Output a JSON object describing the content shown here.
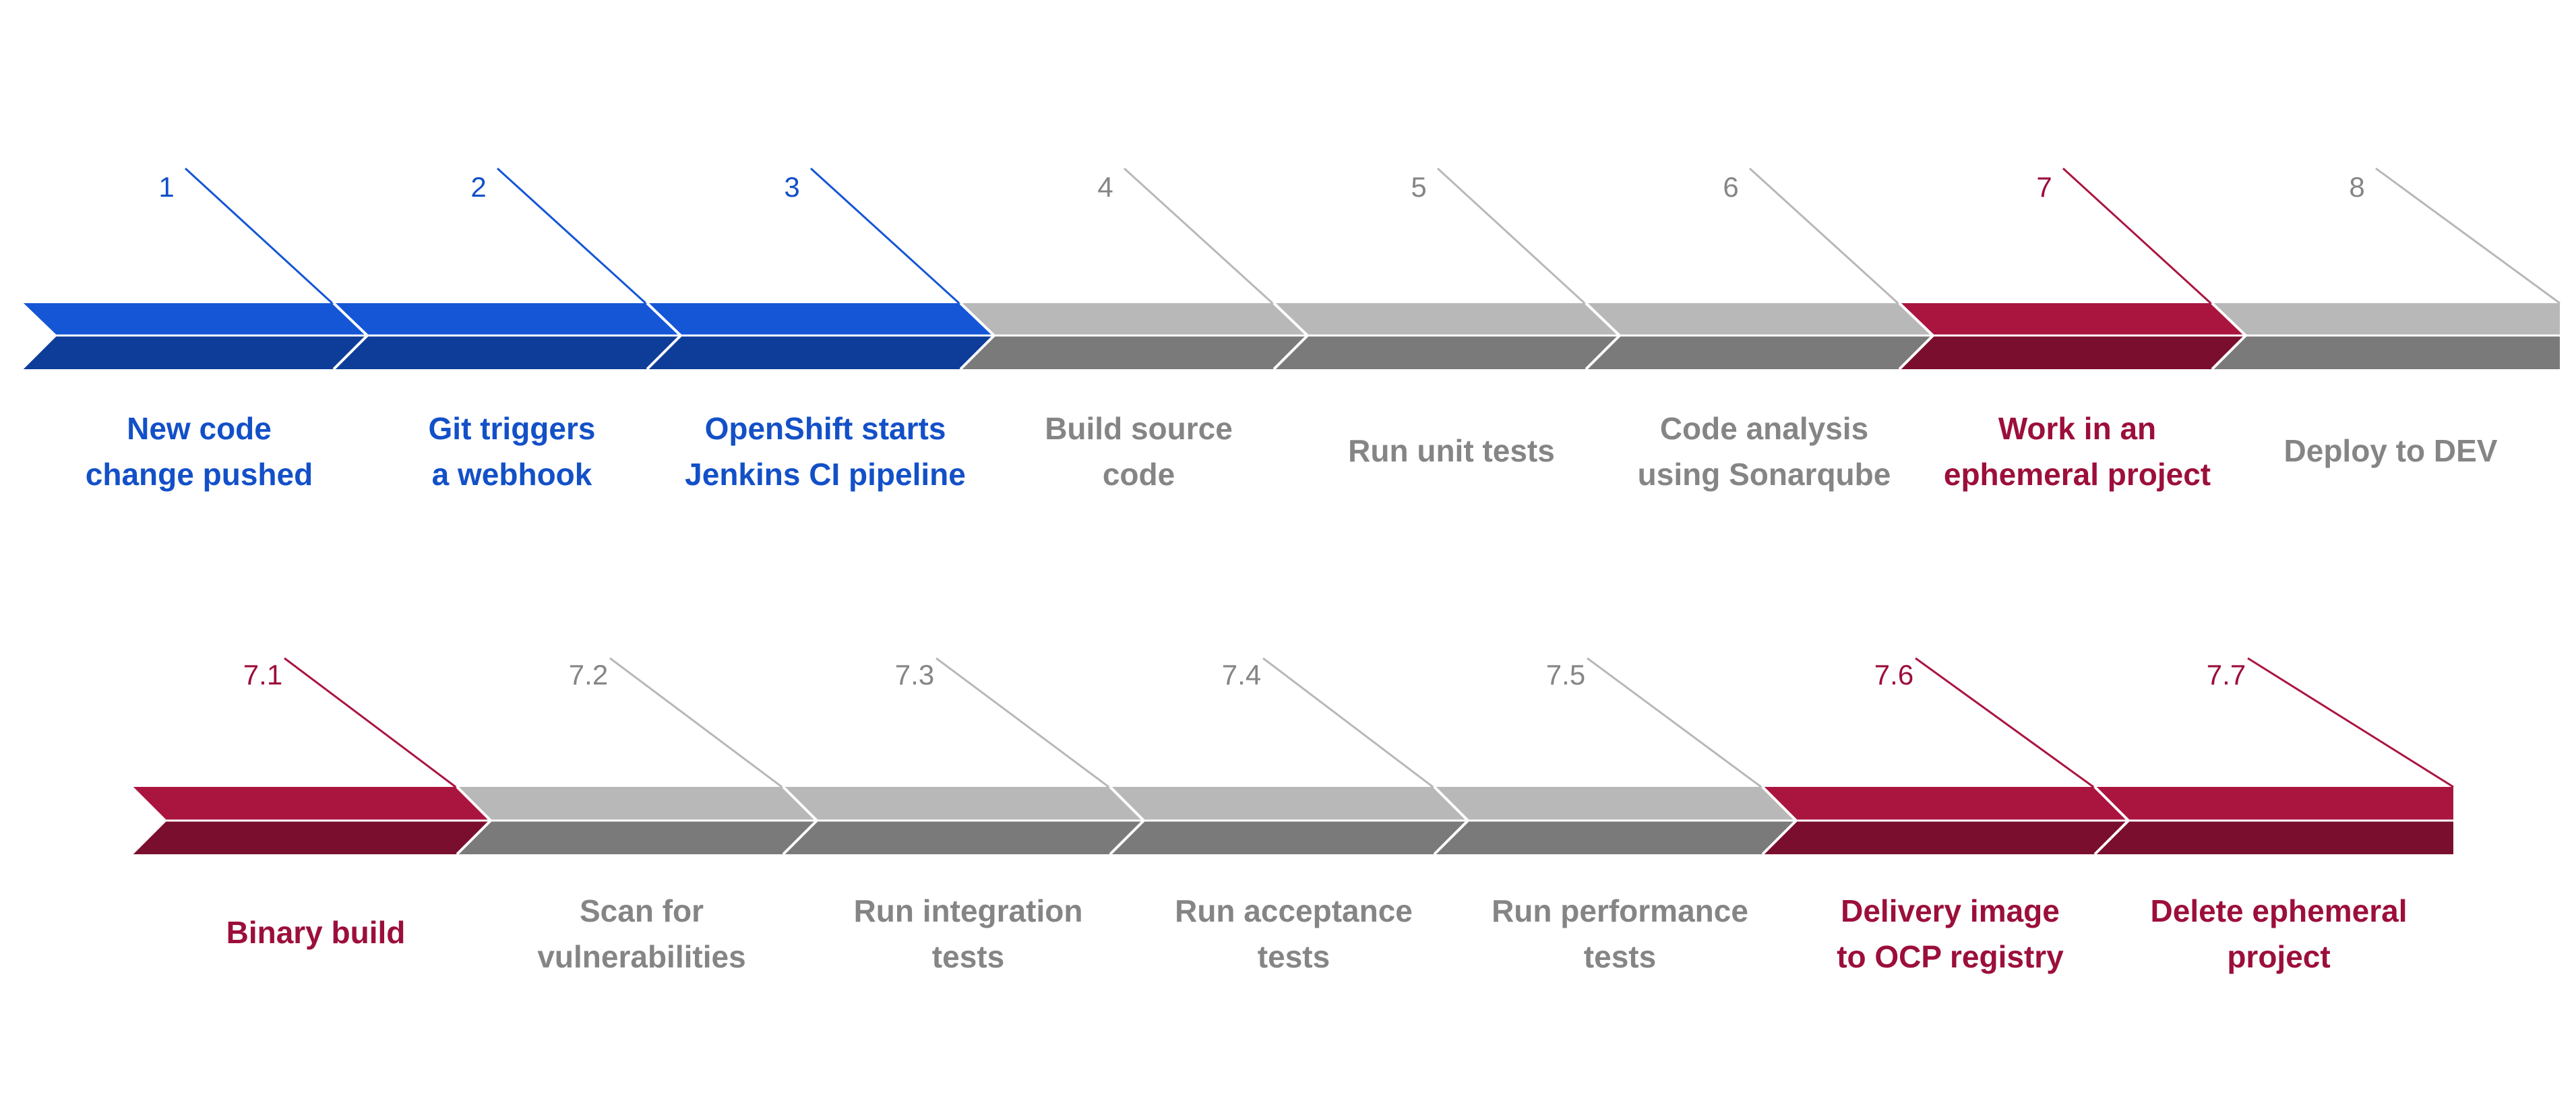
{
  "colors": {
    "blue_top": "#1456D6",
    "blue_bottom": "#0E3C99",
    "gray_top": "#B8B8B8",
    "gray_bottom": "#7A7A7A",
    "red_top": "#AA1540",
    "red_bottom": "#7A0E2E",
    "blue_text": "#1350C8",
    "gray_text": "#858585",
    "red_text": "#9C0F3A"
  },
  "rows": [
    {
      "id": "main",
      "steps": [
        {
          "number": "1",
          "label": [
            "New code",
            "change pushed"
          ],
          "color": "blue"
        },
        {
          "number": "2",
          "label": [
            "Git triggers",
            "a webhook"
          ],
          "color": "blue"
        },
        {
          "number": "3",
          "label": [
            "OpenShift starts",
            "Jenkins CI pipeline"
          ],
          "color": "blue"
        },
        {
          "number": "4",
          "label": [
            "Build source",
            "code"
          ],
          "color": "gray"
        },
        {
          "number": "5",
          "label": [
            "Run unit tests"
          ],
          "color": "gray"
        },
        {
          "number": "6",
          "label": [
            "Code analysis",
            "using Sonarqube"
          ],
          "color": "gray"
        },
        {
          "number": "7",
          "label": [
            "Work in an",
            "ephemeral project"
          ],
          "color": "red"
        },
        {
          "number": "8",
          "label": [
            "Deploy to DEV"
          ],
          "color": "gray"
        }
      ]
    },
    {
      "id": "sub",
      "steps": [
        {
          "number": "7.1",
          "label": [
            "Binary build"
          ],
          "color": "red"
        },
        {
          "number": "7.2",
          "label": [
            "Scan for",
            "vulnerabilities"
          ],
          "color": "gray"
        },
        {
          "number": "7.3",
          "label": [
            "Run integration",
            "tests"
          ],
          "color": "gray"
        },
        {
          "number": "7.4",
          "label": [
            "Run acceptance",
            "tests"
          ],
          "color": "gray"
        },
        {
          "number": "7.5",
          "label": [
            "Run performance",
            "tests"
          ],
          "color": "gray"
        },
        {
          "number": "7.6",
          "label": [
            "Delivery image",
            "to OCP registry"
          ],
          "color": "red"
        },
        {
          "number": "7.7",
          "label": [
            "Delete ephemeral",
            "project"
          ],
          "color": "red"
        }
      ]
    }
  ]
}
